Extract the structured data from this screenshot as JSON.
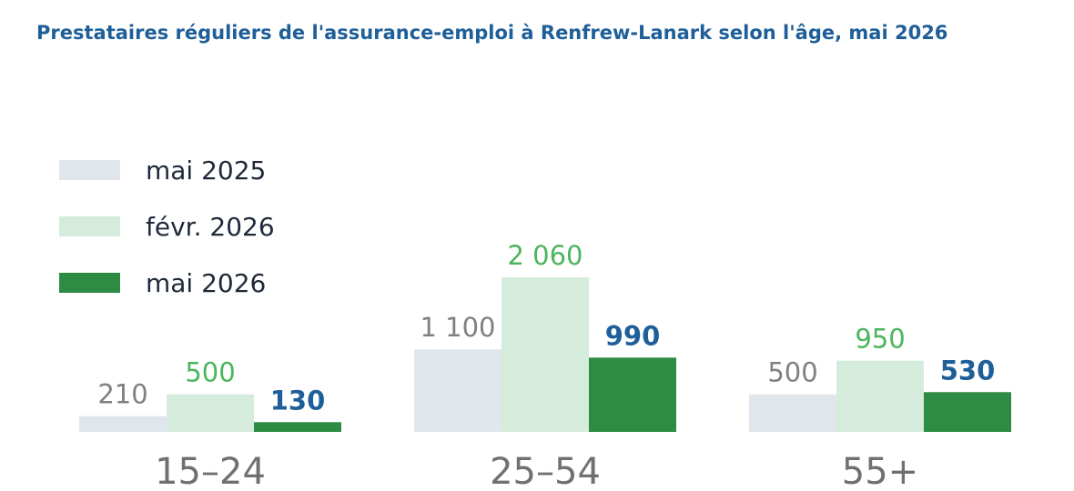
{
  "chart_data": {
    "type": "bar",
    "title": "Prestataires réguliers de l'assurance-emploi à Renfrew-Lanark selon l'âge, mai 2026",
    "categories": [
      "15–24",
      "25–54",
      "55+"
    ],
    "series": [
      {
        "name": "mai 2025",
        "values": [
          210,
          1100,
          500
        ],
        "labels": [
          "210",
          "1 100",
          "500"
        ],
        "color": "#e1e6ed",
        "label_color": "#808080",
        "label_bold": false
      },
      {
        "name": "févr. 2026",
        "values": [
          500,
          2060,
          950
        ],
        "labels": [
          "500",
          "2 060",
          "950"
        ],
        "color": "#d5ecdc",
        "label_color": "#4cb55d",
        "label_bold": false
      },
      {
        "name": "mai 2026",
        "values": [
          130,
          990,
          530
        ],
        "labels": [
          "130",
          "990",
          "530"
        ],
        "color": "#2e8b44",
        "label_color": "#1f5f99",
        "label_bold": true
      }
    ],
    "legend_position": "top-left",
    "grid": false,
    "ylim": [
      0,
      2060
    ]
  }
}
